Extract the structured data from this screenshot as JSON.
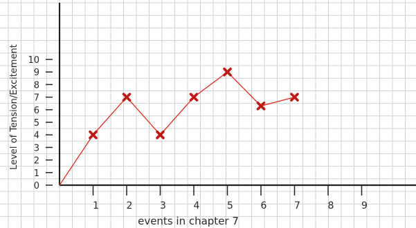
{
  "chart_data": {
    "type": "line",
    "title": "",
    "xlabel": "events in chapter 7",
    "ylabel": "Level of Tension/Excitement",
    "x_ticks": [
      "1",
      "2",
      "3",
      "4",
      "5",
      "6",
      "7",
      "8",
      "9"
    ],
    "y_ticks": [
      "0",
      "1",
      "2",
      "3",
      "4",
      "5",
      "6",
      "7",
      "8",
      "9",
      "10"
    ],
    "xlim": [
      0,
      10
    ],
    "ylim": [
      0,
      11
    ],
    "grid": true,
    "series": [
      {
        "x": [
          0,
          1,
          2,
          3,
          4,
          5,
          6,
          7
        ],
        "y": [
          0,
          4,
          7,
          4,
          7,
          9,
          6.3,
          7
        ],
        "color": "#e8261c",
        "marker_color": "#c2160e"
      }
    ]
  }
}
